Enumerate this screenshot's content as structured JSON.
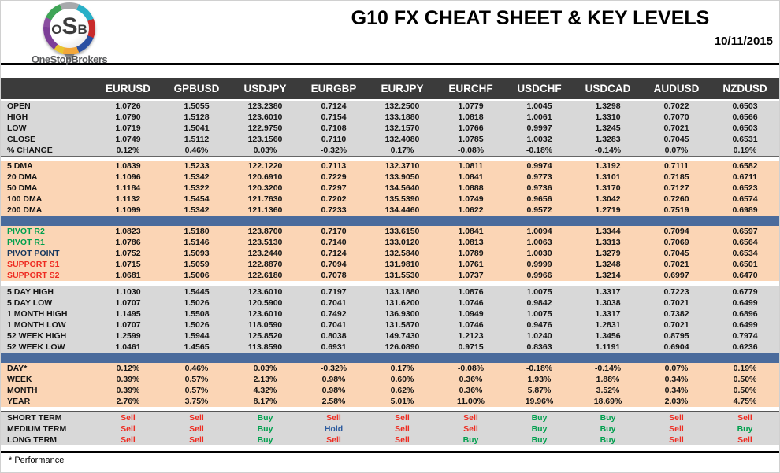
{
  "logo": {
    "monogram_o": "O",
    "monogram_s": "S",
    "monogram_b": "B",
    "name": "OneStopBrokers"
  },
  "header": {
    "title": "G10 FX CHEAT SHEET & KEY LEVELS",
    "date": "10/11/2015"
  },
  "footer": {
    "note": "* Performance"
  },
  "colors": {
    "header_bar": "#3b3b3b",
    "band_gray": "#d8d8d8",
    "band_peach": "#fbd5b5",
    "divider_blue": "#4a6b9c",
    "buy_green": "#00a04e",
    "sell_red": "#ee2b21",
    "pivot_navy": "#17375e",
    "hold_blue": "#2d5b9e"
  },
  "signal_colors": {
    "Sell": "red",
    "Buy": "green",
    "Hold": "blue"
  },
  "table": {
    "columns": [
      "EURUSD",
      "GPBUSD",
      "USDJPY",
      "EURGBP",
      "EURJPY",
      "EURCHF",
      "USDCHF",
      "USDCAD",
      "AUDUSD",
      "NZDUSD"
    ],
    "sections": [
      {
        "id": "ohlc",
        "band": "gray",
        "rows": [
          {
            "label": "OPEN",
            "values": [
              "1.0726",
              "1.5055",
              "123.2380",
              "0.7124",
              "132.2500",
              "1.0779",
              "1.0045",
              "1.3298",
              "0.7022",
              "0.6503"
            ]
          },
          {
            "label": "HIGH",
            "values": [
              "1.0790",
              "1.5128",
              "123.6010",
              "0.7154",
              "133.1880",
              "1.0818",
              "1.0061",
              "1.3310",
              "0.7070",
              "0.6566"
            ]
          },
          {
            "label": "LOW",
            "values": [
              "1.0719",
              "1.5041",
              "122.9750",
              "0.7108",
              "132.1570",
              "1.0766",
              "0.9997",
              "1.3245",
              "0.7021",
              "0.6503"
            ]
          },
          {
            "label": "CLOSE",
            "values": [
              "1.0749",
              "1.5112",
              "123.1560",
              "0.7110",
              "132.4080",
              "1.0785",
              "1.0032",
              "1.3283",
              "0.7045",
              "0.6531"
            ]
          },
          {
            "label": "% CHANGE",
            "values": [
              "0.12%",
              "0.46%",
              "0.03%",
              "-0.32%",
              "0.17%",
              "-0.08%",
              "-0.18%",
              "-0.14%",
              "0.07%",
              "0.19%"
            ]
          }
        ]
      },
      {
        "id": "dma",
        "band": "peach",
        "rows": [
          {
            "label": "5 DMA",
            "values": [
              "1.0839",
              "1.5233",
              "122.1220",
              "0.7113",
              "132.3710",
              "1.0811",
              "0.9974",
              "1.3192",
              "0.7111",
              "0.6582"
            ]
          },
          {
            "label": "20 DMA",
            "values": [
              "1.1096",
              "1.5342",
              "120.6910",
              "0.7229",
              "133.9050",
              "1.0841",
              "0.9773",
              "1.3101",
              "0.7185",
              "0.6711"
            ]
          },
          {
            "label": "50 DMA",
            "values": [
              "1.1184",
              "1.5322",
              "120.3200",
              "0.7297",
              "134.5640",
              "1.0888",
              "0.9736",
              "1.3170",
              "0.7127",
              "0.6523"
            ]
          },
          {
            "label": "100 DMA",
            "values": [
              "1.1132",
              "1.5454",
              "121.7630",
              "0.7202",
              "135.5390",
              "1.0749",
              "0.9656",
              "1.3042",
              "0.7260",
              "0.6574"
            ]
          },
          {
            "label": "200 DMA",
            "values": [
              "1.1099",
              "1.5342",
              "121.1360",
              "0.7233",
              "134.4460",
              "1.0622",
              "0.9572",
              "1.2719",
              "0.7519",
              "0.6989"
            ]
          }
        ]
      },
      {
        "id": "divider-1",
        "divider": "blue"
      },
      {
        "id": "pivots",
        "band": "peach",
        "rows": [
          {
            "label": "PIVOT R2",
            "label_class": "green",
            "values": [
              "1.0823",
              "1.5180",
              "123.8700",
              "0.7170",
              "133.6150",
              "1.0841",
              "1.0094",
              "1.3344",
              "0.7094",
              "0.6597"
            ]
          },
          {
            "label": "PIVOT R1",
            "label_class": "green",
            "values": [
              "1.0786",
              "1.5146",
              "123.5130",
              "0.7140",
              "133.0120",
              "1.0813",
              "1.0063",
              "1.3313",
              "0.7069",
              "0.6564"
            ]
          },
          {
            "label": "PIVOT POINT",
            "label_class": "navy",
            "values": [
              "1.0752",
              "1.5093",
              "123.2440",
              "0.7124",
              "132.5840",
              "1.0789",
              "1.0030",
              "1.3279",
              "0.7045",
              "0.6534"
            ]
          },
          {
            "label": "SUPPORT S1",
            "label_class": "red",
            "values": [
              "1.0715",
              "1.5059",
              "122.8870",
              "0.7094",
              "131.9810",
              "1.0761",
              "0.9999",
              "1.3248",
              "0.7021",
              "0.6501"
            ]
          },
          {
            "label": "SUPPORT S2",
            "label_class": "red",
            "values": [
              "1.0681",
              "1.5006",
              "122.6180",
              "0.7078",
              "131.5530",
              "1.0737",
              "0.9966",
              "1.3214",
              "0.6997",
              "0.6470"
            ]
          }
        ]
      },
      {
        "id": "ranges",
        "band": "gray",
        "rows": [
          {
            "label": "5 DAY HIGH",
            "values": [
              "1.1030",
              "1.5445",
              "123.6010",
              "0.7197",
              "133.1880",
              "1.0876",
              "1.0075",
              "1.3317",
              "0.7223",
              "0.6779"
            ]
          },
          {
            "label": "5 DAY LOW",
            "values": [
              "1.0707",
              "1.5026",
              "120.5900",
              "0.7041",
              "131.6200",
              "1.0746",
              "0.9842",
              "1.3038",
              "0.7021",
              "0.6499"
            ]
          },
          {
            "label": "1 MONTH HIGH",
            "values": [
              "1.1495",
              "1.5508",
              "123.6010",
              "0.7492",
              "136.9300",
              "1.0949",
              "1.0075",
              "1.3317",
              "0.7382",
              "0.6896"
            ]
          },
          {
            "label": "1 MONTH LOW",
            "values": [
              "1.0707",
              "1.5026",
              "118.0590",
              "0.7041",
              "131.5870",
              "1.0746",
              "0.9476",
              "1.2831",
              "0.7021",
              "0.6499"
            ]
          },
          {
            "label": "52 WEEK HIGH",
            "values": [
              "1.2599",
              "1.5944",
              "125.8520",
              "0.8038",
              "149.7430",
              "1.2123",
              "1.0240",
              "1.3456",
              "0.8795",
              "0.7974"
            ]
          },
          {
            "label": "52 WEEK LOW",
            "values": [
              "1.0461",
              "1.4565",
              "113.8590",
              "0.6931",
              "126.0890",
              "0.9715",
              "0.8363",
              "1.1191",
              "0.6904",
              "0.6236"
            ]
          }
        ]
      },
      {
        "id": "divider-2",
        "divider": "blue"
      },
      {
        "id": "performance",
        "band": "peach",
        "rows": [
          {
            "label": "DAY*",
            "values": [
              "0.12%",
              "0.46%",
              "0.03%",
              "-0.32%",
              "0.17%",
              "-0.08%",
              "-0.18%",
              "-0.14%",
              "0.07%",
              "0.19%"
            ]
          },
          {
            "label": "WEEK",
            "values": [
              "0.39%",
              "0.57%",
              "2.13%",
              "0.98%",
              "0.60%",
              "0.36%",
              "1.93%",
              "1.88%",
              "0.34%",
              "0.50%"
            ]
          },
          {
            "label": "MONTH",
            "values": [
              "0.39%",
              "0.57%",
              "4.32%",
              "0.98%",
              "0.62%",
              "0.36%",
              "5.87%",
              "3.52%",
              "0.34%",
              "0.50%"
            ]
          },
          {
            "label": "YEAR",
            "values": [
              "2.76%",
              "3.75%",
              "8.17%",
              "2.58%",
              "5.01%",
              "11.00%",
              "19.96%",
              "18.69%",
              "2.03%",
              "4.75%"
            ]
          }
        ]
      },
      {
        "id": "signals",
        "band": "gray",
        "signal": true,
        "rows": [
          {
            "label": "SHORT TERM",
            "values": [
              "Sell",
              "Sell",
              "Buy",
              "Sell",
              "Sell",
              "Sell",
              "Buy",
              "Buy",
              "Sell",
              "Sell"
            ]
          },
          {
            "label": "MEDIUM TERM",
            "values": [
              "Sell",
              "Sell",
              "Buy",
              "Hold",
              "Sell",
              "Sell",
              "Buy",
              "Buy",
              "Sell",
              "Buy"
            ]
          },
          {
            "label": "LONG TERM",
            "values": [
              "Sell",
              "Sell",
              "Buy",
              "Sell",
              "Sell",
              "Buy",
              "Buy",
              "Buy",
              "Sell",
              "Sell"
            ]
          }
        ]
      }
    ]
  }
}
